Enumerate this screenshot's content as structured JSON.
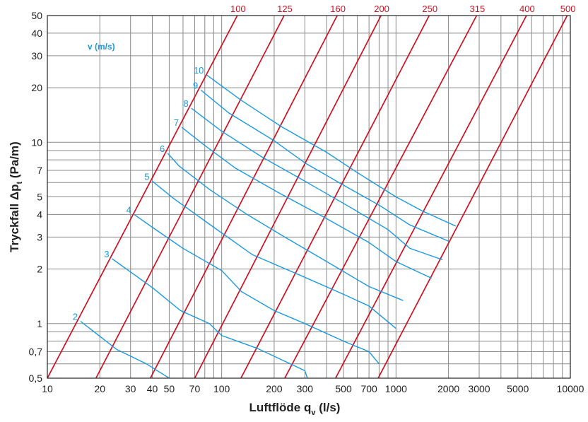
{
  "chart_data": {
    "type": "line",
    "xlabel": "Luftflöde q",
    "xlabel_sub": "v",
    "xlabel_unit": " (l/s)",
    "ylabel": "Tryckfall Δp",
    "ylabel_sub": "t",
    "ylabel_unit": " (Pa/m)",
    "x_scale": "log",
    "y_scale": "log",
    "xlim": [
      10,
      10000
    ],
    "ylim": [
      0.5,
      50
    ],
    "grid": true,
    "x_gridlines": [
      10,
      20,
      30,
      40,
      50,
      60,
      70,
      80,
      90,
      100,
      200,
      300,
      400,
      500,
      600,
      700,
      800,
      900,
      1000,
      2000,
      3000,
      4000,
      5000,
      6000,
      7000,
      8000,
      9000,
      10000
    ],
    "y_gridlines": [
      0.5,
      0.6,
      0.7,
      0.8,
      0.9,
      1,
      2,
      3,
      4,
      5,
      6,
      7,
      8,
      9,
      10,
      20,
      30,
      40,
      50
    ],
    "x_tick_labels": [
      {
        "value": 10,
        "text": "10"
      },
      {
        "value": 20,
        "text": "20"
      },
      {
        "value": 30,
        "text": "30"
      },
      {
        "value": 40,
        "text": "40"
      },
      {
        "value": 50,
        "text": "50"
      },
      {
        "value": 70,
        "text": "70"
      },
      {
        "value": 100,
        "text": "100"
      },
      {
        "value": 200,
        "text": "200"
      },
      {
        "value": 300,
        "text": "300"
      },
      {
        "value": 500,
        "text": "500"
      },
      {
        "value": 700,
        "text": "700"
      },
      {
        "value": 1000,
        "text": "1000"
      },
      {
        "value": 2000,
        "text": "2000"
      },
      {
        "value": 3000,
        "text": "3000"
      },
      {
        "value": 5000,
        "text": "5000"
      },
      {
        "value": 10000,
        "text": "10000"
      }
    ],
    "y_tick_labels": [
      {
        "value": 0.5,
        "text": "0,5"
      },
      {
        "value": 0.7,
        "text": "0,7"
      },
      {
        "value": 1,
        "text": "1"
      },
      {
        "value": 2,
        "text": "2"
      },
      {
        "value": 3,
        "text": "3"
      },
      {
        "value": 4,
        "text": "4"
      },
      {
        "value": 5,
        "text": "5"
      },
      {
        "value": 7,
        "text": "7"
      },
      {
        "value": 10,
        "text": "10"
      },
      {
        "value": 20,
        "text": "20"
      },
      {
        "value": 30,
        "text": "30"
      },
      {
        "value": 40,
        "text": "40"
      },
      {
        "value": 50,
        "text": "50"
      }
    ],
    "diameter_series_color": "#cc1122",
    "velocity_series_color": "#1a9ae0",
    "velocity_unit_label": "v (m/s)",
    "diameter_series": [
      {
        "name": "100",
        "points": [
          [
            10.0,
            0.5
          ],
          [
            123.0,
            50
          ]
        ]
      },
      {
        "name": "125",
        "points": [
          [
            19.0,
            0.5
          ],
          [
            228.0,
            50
          ]
        ]
      },
      {
        "name": "160",
        "points": [
          [
            39.0,
            0.5
          ],
          [
            460.0,
            50
          ]
        ]
      },
      {
        "name": "200",
        "points": [
          [
            70.0,
            0.5
          ],
          [
            820.0,
            50
          ]
        ]
      },
      {
        "name": "250",
        "points": [
          [
            129.0,
            0.5
          ],
          [
            1550.0,
            50
          ]
        ]
      },
      {
        "name": "315",
        "points": [
          [
            230.0,
            0.5
          ],
          [
            2900.0,
            50
          ]
        ]
      },
      {
        "name": "400",
        "points": [
          [
            450.0,
            0.5
          ],
          [
            5600.0,
            50
          ]
        ]
      },
      {
        "name": "500",
        "points": [
          [
            790.0,
            0.5
          ],
          [
            9600.0,
            50
          ]
        ]
      }
    ],
    "velocity_series": [
      {
        "name": "2",
        "points": [
          [
            15.5,
            1.03
          ],
          [
            25,
            0.72
          ],
          [
            37,
            0.6
          ],
          [
            50,
            0.5
          ]
        ]
      },
      {
        "name": "3",
        "points": [
          [
            23.5,
            2.28
          ],
          [
            40,
            1.58
          ],
          [
            58,
            1.18
          ],
          [
            85,
            1.0
          ],
          [
            100,
            0.86
          ],
          [
            160,
            0.73
          ],
          [
            300,
            0.55
          ],
          [
            310,
            0.5
          ]
        ]
      },
      {
        "name": "4",
        "points": [
          [
            31.5,
            4.0
          ],
          [
            40,
            3.4
          ],
          [
            60,
            2.6
          ],
          [
            100,
            1.96
          ],
          [
            130,
            1.5
          ],
          [
            200,
            1.18
          ],
          [
            300,
            1.0
          ],
          [
            500,
            0.8
          ],
          [
            700,
            0.7
          ],
          [
            800,
            0.6
          ]
        ]
      },
      {
        "name": "5",
        "points": [
          [
            40,
            6.1
          ],
          [
            53,
            4.9
          ],
          [
            90,
            3.4
          ],
          [
            150,
            2.4
          ],
          [
            300,
            1.8
          ],
          [
            500,
            1.45
          ],
          [
            700,
            1.25
          ],
          [
            1000,
            0.94
          ]
        ]
      },
      {
        "name": "6",
        "points": [
          [
            49,
            8.7
          ],
          [
            57,
            7.4
          ],
          [
            85,
            5.5
          ],
          [
            140,
            4.0
          ],
          [
            230,
            3.0
          ],
          [
            400,
            2.2
          ],
          [
            700,
            1.6
          ],
          [
            1100,
            1.34
          ]
        ]
      },
      {
        "name": "7",
        "points": [
          [
            59,
            12.1
          ],
          [
            80,
            9.6
          ],
          [
            120,
            7.2
          ],
          [
            210,
            5.3
          ],
          [
            380,
            3.9
          ],
          [
            700,
            2.8
          ],
          [
            1000,
            2.2
          ],
          [
            1600,
            1.78
          ]
        ]
      },
      {
        "name": "8",
        "points": [
          [
            67,
            15.4
          ],
          [
            100,
            11.5
          ],
          [
            170,
            8.3
          ],
          [
            300,
            6.1
          ],
          [
            520,
            4.5
          ],
          [
            900,
            3.3
          ],
          [
            1200,
            2.6
          ],
          [
            1850,
            2.25
          ]
        ]
      },
      {
        "name": "9",
        "points": [
          [
            76,
            19.4
          ],
          [
            110,
            14.5
          ],
          [
            200,
            10.2
          ],
          [
            300,
            7.7
          ],
          [
            500,
            5.8
          ],
          [
            800,
            4.5
          ],
          [
            1200,
            3.5
          ],
          [
            2000,
            2.85
          ]
        ]
      },
      {
        "name": "10",
        "points": [
          [
            82,
            23.5
          ],
          [
            130,
            17.0
          ],
          [
            220,
            12.2
          ],
          [
            400,
            8.8
          ],
          [
            600,
            6.8
          ],
          [
            1000,
            5.0
          ],
          [
            1400,
            4.2
          ],
          [
            2200,
            3.45
          ]
        ]
      }
    ]
  }
}
